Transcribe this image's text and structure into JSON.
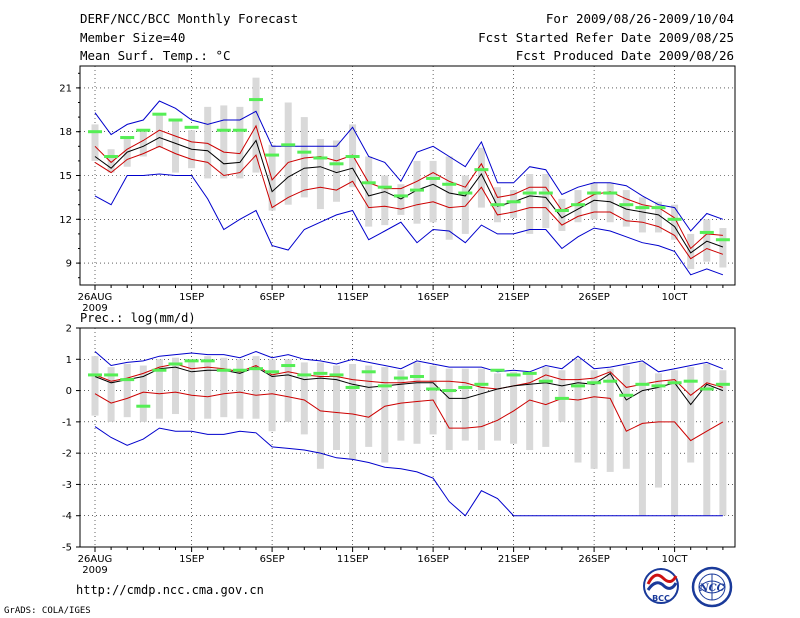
{
  "header": {
    "title": "DERF/NCC/BCC Monthly Forecast",
    "member_size": "Member Size=40",
    "variable": "Mean Surf. Temp.: °C",
    "period": "For 2009/08/26-2009/10/04",
    "fcst_started": "Fcst Started Refer Date 2009/08/25",
    "fcst_produced": "Fcst Produced Date 2009/08/26"
  },
  "footer": {
    "url": "http://cmdp.ncc.cma.gov.cn",
    "grads": "GrADS: COLA/IGES",
    "logo1_text": "BCC",
    "logo2_text": "NCC"
  },
  "colors": {
    "envelope": "#0000cc",
    "spread": "#cc0000",
    "mean": "#000000",
    "member_bar": "#d9d9d9",
    "marker": "#55ee55"
  },
  "chart_data": [
    {
      "type": "line",
      "title": "Mean Surf. Temp.: °C",
      "ylim": [
        7.5,
        22.5
      ],
      "yticks": [
        9,
        12,
        15,
        18,
        21
      ],
      "xticks": [
        {
          "day": 0,
          "label": "26AUG",
          "sub": "2009"
        },
        {
          "day": 6,
          "label": "1SEP"
        },
        {
          "day": 11,
          "label": "6SEP"
        },
        {
          "day": 16,
          "label": "11SEP"
        },
        {
          "day": 21,
          "label": "16SEP"
        },
        {
          "day": 26,
          "label": "21SEP"
        },
        {
          "day": 31,
          "label": "26SEP"
        },
        {
          "day": 36,
          "label": "10CT"
        }
      ],
      "x": [
        0,
        1,
        2,
        3,
        4,
        5,
        6,
        7,
        8,
        9,
        10,
        11,
        12,
        13,
        14,
        15,
        16,
        17,
        18,
        19,
        20,
        21,
        22,
        23,
        24,
        25,
        26,
        27,
        28,
        29,
        30,
        31,
        32,
        33,
        34,
        35,
        36,
        37,
        38,
        39
      ],
      "series": [
        {
          "name": "max",
          "role": "envelope",
          "values": [
            19.3,
            17.8,
            18.5,
            18.8,
            20.1,
            19.6,
            18.8,
            18.5,
            18.8,
            18.8,
            19.4,
            17.0,
            17.0,
            17.0,
            17.0,
            17.0,
            18.3,
            16.3,
            15.9,
            14.6,
            16.6,
            17.0,
            16.3,
            15.6,
            17.3,
            14.5,
            14.5,
            15.6,
            15.4,
            13.7,
            14.2,
            14.5,
            14.5,
            14.3,
            13.6,
            13.0,
            12.8,
            11.2,
            12.4,
            12.0
          ]
        },
        {
          "name": "upper",
          "role": "spread",
          "values": [
            17.0,
            15.9,
            16.8,
            17.4,
            18.1,
            17.7,
            17.3,
            17.2,
            16.6,
            16.5,
            18.4,
            14.7,
            15.9,
            16.2,
            16.3,
            16.0,
            16.4,
            14.5,
            14.1,
            14.1,
            14.6,
            15.2,
            14.6,
            14.2,
            15.8,
            13.5,
            13.7,
            14.2,
            14.2,
            12.6,
            13.1,
            13.7,
            13.9,
            13.4,
            13.0,
            12.8,
            12.1,
            10.0,
            11.0,
            10.9
          ]
        },
        {
          "name": "mean",
          "role": "mean",
          "values": [
            16.3,
            15.5,
            16.6,
            17.0,
            17.6,
            17.2,
            16.8,
            16.7,
            15.8,
            15.9,
            17.4,
            13.9,
            14.9,
            15.5,
            15.6,
            15.2,
            15.5,
            13.6,
            13.9,
            13.4,
            14.0,
            14.4,
            13.8,
            13.6,
            15.1,
            12.9,
            13.2,
            13.6,
            13.5,
            12.1,
            12.7,
            13.3,
            13.2,
            12.7,
            12.5,
            12.3,
            11.5,
            9.7,
            10.5,
            10.1
          ]
        },
        {
          "name": "lower",
          "role": "spread",
          "values": [
            15.9,
            15.2,
            16.1,
            16.5,
            17.0,
            16.5,
            16.1,
            15.9,
            15.0,
            15.2,
            16.4,
            12.8,
            13.5,
            14.0,
            14.2,
            14.0,
            14.6,
            12.8,
            12.9,
            12.7,
            13.0,
            13.2,
            12.8,
            12.9,
            14.2,
            12.3,
            12.5,
            12.8,
            12.8,
            11.6,
            12.2,
            12.5,
            12.5,
            11.9,
            11.8,
            11.5,
            10.9,
            9.3,
            10.0,
            9.6
          ]
        },
        {
          "name": "min",
          "role": "envelope",
          "values": [
            13.6,
            13.0,
            15.0,
            15.0,
            15.1,
            15.0,
            15.0,
            13.4,
            11.3,
            12.0,
            12.6,
            10.2,
            9.9,
            11.3,
            11.8,
            12.3,
            12.6,
            10.6,
            11.2,
            11.8,
            10.4,
            11.3,
            11.2,
            10.4,
            11.6,
            11.0,
            11.0,
            11.3,
            11.3,
            10.0,
            10.8,
            11.4,
            11.2,
            10.8,
            10.4,
            10.2,
            9.8,
            8.2,
            8.6,
            8.2
          ]
        },
        {
          "name": "bar_top",
          "role": "member_range",
          "values": [
            18.5,
            16.8,
            17.6,
            18.0,
            19.2,
            18.8,
            18.1,
            19.7,
            19.8,
            19.7,
            21.7,
            17.1,
            20.0,
            19.0,
            17.5,
            17.4,
            18.5,
            16.3,
            15.0,
            14.4,
            16.0,
            16.0,
            16.3,
            15.0,
            16.9,
            14.2,
            14.0,
            15.1,
            15.1,
            13.4,
            14.0,
            14.5,
            14.5,
            14.0,
            13.5,
            13.2,
            13.0,
            11.0,
            12.0,
            11.4
          ]
        },
        {
          "name": "bar_bottom",
          "role": "member_range",
          "values": [
            16.0,
            15.2,
            15.6,
            16.3,
            16.9,
            15.2,
            15.5,
            14.8,
            14.8,
            14.8,
            15.2,
            12.6,
            13.0,
            13.5,
            12.7,
            13.2,
            14.2,
            11.5,
            11.6,
            12.3,
            11.7,
            11.8,
            10.6,
            11.0,
            12.8,
            11.8,
            12.1,
            11.0,
            11.4,
            11.2,
            11.8,
            12.0,
            11.8,
            11.5,
            11.1,
            11.1,
            10.6,
            8.6,
            9.1,
            8.7
          ]
        },
        {
          "name": "marker",
          "role": "marker",
          "values": [
            18.0,
            16.3,
            17.6,
            18.1,
            19.2,
            18.8,
            18.3,
            null,
            18.1,
            18.1,
            20.2,
            16.4,
            17.1,
            16.6,
            16.2,
            15.8,
            16.3,
            14.5,
            14.2,
            13.6,
            14.0,
            14.8,
            14.4,
            13.8,
            15.4,
            13.0,
            13.2,
            13.8,
            13.8,
            12.6,
            13.0,
            13.8,
            13.8,
            13.0,
            12.8,
            12.8,
            12.0,
            null,
            11.1,
            10.6
          ]
        }
      ]
    },
    {
      "type": "line",
      "title": "Prec.: log(mm/d)",
      "ylim": [
        -5,
        2
      ],
      "yticks": [
        -5,
        -4,
        -3,
        -2,
        -1,
        0,
        1,
        2
      ],
      "xticks": [
        {
          "day": 0,
          "label": "26AUG",
          "sub": "2009"
        },
        {
          "day": 6,
          "label": "1SEP"
        },
        {
          "day": 11,
          "label": "6SEP"
        },
        {
          "day": 16,
          "label": "11SEP"
        },
        {
          "day": 21,
          "label": "16SEP"
        },
        {
          "day": 26,
          "label": "21SEP"
        },
        {
          "day": 31,
          "label": "26SEP"
        },
        {
          "day": 36,
          "label": "10CT"
        }
      ],
      "x": [
        0,
        1,
        2,
        3,
        4,
        5,
        6,
        7,
        8,
        9,
        10,
        11,
        12,
        13,
        14,
        15,
        16,
        17,
        18,
        19,
        20,
        21,
        22,
        23,
        24,
        25,
        26,
        27,
        28,
        29,
        30,
        31,
        32,
        33,
        34,
        35,
        36,
        37,
        38,
        39
      ],
      "series": [
        {
          "name": "max",
          "role": "envelope",
          "values": [
            1.25,
            0.8,
            0.9,
            0.95,
            1.1,
            1.15,
            1.2,
            1.15,
            1.15,
            1.05,
            1.25,
            1.05,
            1.15,
            1.0,
            0.95,
            0.85,
            1.0,
            0.9,
            0.8,
            0.7,
            0.95,
            0.85,
            0.75,
            0.75,
            0.75,
            0.6,
            0.65,
            0.6,
            0.8,
            0.7,
            1.1,
            0.7,
            0.75,
            0.85,
            0.95,
            0.6,
            0.7,
            0.8,
            0.9,
            0.7
          ]
        },
        {
          "name": "upper",
          "role": "spread",
          "values": [
            0.5,
            0.3,
            0.4,
            0.55,
            0.75,
            0.85,
            0.7,
            0.75,
            0.7,
            0.6,
            0.8,
            0.5,
            0.6,
            0.5,
            0.45,
            0.45,
            0.35,
            0.3,
            0.25,
            0.25,
            0.3,
            0.3,
            0.3,
            0.25,
            0.1,
            0.05,
            0.15,
            0.25,
            0.5,
            0.35,
            0.35,
            0.4,
            0.6,
            0.1,
            0.2,
            0.3,
            0.35,
            -0.15,
            0.25,
            0.1
          ]
        },
        {
          "name": "mean",
          "role": "mean",
          "values": [
            0.45,
            0.25,
            0.35,
            0.45,
            0.7,
            0.75,
            0.6,
            0.65,
            0.65,
            0.55,
            0.75,
            0.45,
            0.5,
            0.35,
            0.4,
            0.35,
            0.2,
            0.1,
            0.15,
            0.2,
            0.25,
            0.25,
            -0.25,
            -0.25,
            -0.1,
            0.05,
            0.15,
            0.2,
            0.25,
            0.15,
            0.25,
            0.2,
            0.55,
            -0.3,
            0.0,
            0.1,
            0.25,
            -0.45,
            0.2,
            0.0
          ]
        },
        {
          "name": "lower",
          "role": "spread",
          "values": [
            -0.1,
            -0.4,
            -0.25,
            -0.05,
            -0.1,
            -0.05,
            -0.15,
            -0.2,
            -0.1,
            -0.05,
            -0.15,
            -0.1,
            -0.2,
            -0.3,
            -0.65,
            -0.7,
            -0.75,
            -0.85,
            -0.5,
            -0.4,
            -0.35,
            -0.3,
            -1.2,
            -1.2,
            -1.15,
            -0.95,
            -0.65,
            -0.3,
            -0.45,
            -0.25,
            -0.3,
            -0.2,
            -0.25,
            -1.3,
            -1.05,
            -1.0,
            -1.0,
            -1.6,
            -1.3,
            -1.0
          ]
        },
        {
          "name": "min",
          "role": "envelope",
          "values": [
            -1.15,
            -1.5,
            -1.75,
            -1.55,
            -1.2,
            -1.3,
            -1.3,
            -1.4,
            -1.4,
            -1.3,
            -1.35,
            -1.8,
            -1.85,
            -1.9,
            -2.0,
            -2.15,
            -2.2,
            -2.3,
            -2.45,
            -2.5,
            -2.6,
            -2.8,
            -3.55,
            -4.0,
            -3.2,
            -3.45,
            -4.0,
            -4.0,
            -4.0,
            -4.0,
            -4.0,
            -4.0,
            -4.0,
            -4.0,
            -4.0,
            -4.0,
            -4.0,
            -4.0,
            -4.0,
            -4.0
          ]
        },
        {
          "name": "bar_top",
          "role": "member_range",
          "values": [
            1.1,
            0.75,
            0.85,
            0.8,
            1.0,
            1.05,
            1.0,
            1.1,
            1.05,
            1.0,
            1.1,
            1.0,
            1.0,
            0.9,
            0.9,
            0.8,
            0.85,
            0.8,
            0.75,
            0.65,
            0.9,
            0.8,
            0.7,
            0.7,
            0.7,
            0.55,
            0.6,
            0.55,
            0.75,
            0.65,
            1.0,
            0.65,
            0.7,
            0.8,
            0.9,
            0.55,
            0.65,
            0.75,
            0.85,
            0.65
          ]
        },
        {
          "name": "bar_bottom",
          "role": "member_range",
          "values": [
            -0.8,
            -1.0,
            -0.85,
            -1.0,
            -0.9,
            -0.75,
            -0.95,
            -0.9,
            -0.85,
            -0.9,
            -0.9,
            -1.3,
            -1.0,
            -1.4,
            -2.5,
            -1.9,
            -2.2,
            -1.8,
            -2.3,
            -1.6,
            -1.7,
            -1.4,
            -1.9,
            -1.6,
            -1.9,
            -1.6,
            -1.7,
            -1.9,
            -1.8,
            -1.0,
            -2.3,
            -2.5,
            -2.6,
            -2.5,
            -4.0,
            -3.1,
            -4.0,
            -2.3,
            -4.0,
            -4.0
          ]
        },
        {
          "name": "marker",
          "role": "marker",
          "values": [
            0.5,
            0.5,
            0.35,
            -0.5,
            0.65,
            0.85,
            0.95,
            0.95,
            0.65,
            0.65,
            0.7,
            0.6,
            0.8,
            0.5,
            0.55,
            0.5,
            0.1,
            0.6,
            0.15,
            0.4,
            0.45,
            0.05,
            0.0,
            0.1,
            0.2,
            0.65,
            0.5,
            0.55,
            0.3,
            -0.25,
            0.15,
            0.25,
            0.3,
            -0.15,
            0.2,
            0.15,
            0.25,
            0.3,
            0.05,
            0.2
          ]
        }
      ]
    }
  ]
}
